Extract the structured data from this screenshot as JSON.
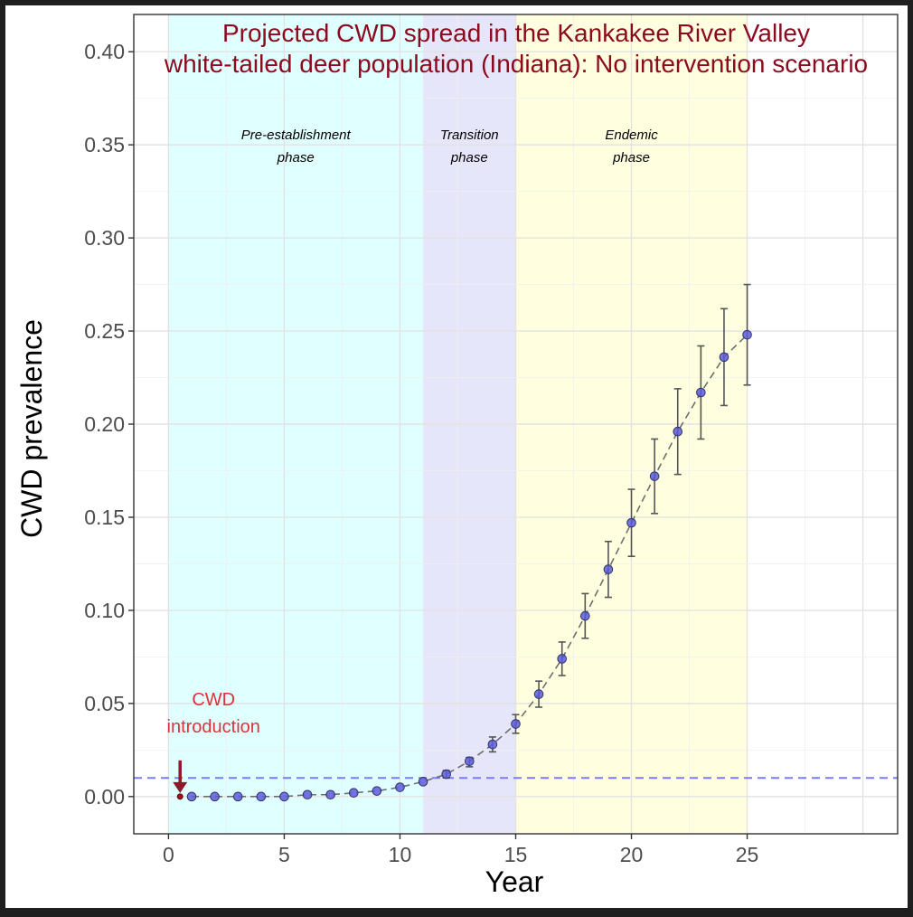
{
  "chart_data": {
    "type": "scatter",
    "title": [
      "Projected CWD spread in the Kankakee River Valley",
      "white-tailed deer population (Indiana): No intervention scenario"
    ],
    "xlabel": "Year",
    "ylabel": "CWD prevalence",
    "xlim": [
      -1.5,
      31.5
    ],
    "ylim": [
      -0.02,
      0.42
    ],
    "xticks": [
      0,
      5,
      10,
      15,
      20,
      25
    ],
    "yticks": [
      0.0,
      0.05,
      0.1,
      0.15,
      0.2,
      0.25,
      0.3,
      0.35,
      0.4
    ],
    "xtick_labels": [
      "0",
      "5",
      "10",
      "15",
      "20",
      "25"
    ],
    "ytick_labels": [
      "0.00",
      "0.05",
      "0.10",
      "0.15",
      "0.20",
      "0.25",
      "0.30",
      "0.35",
      "0.40"
    ],
    "grid": true,
    "legend": "none",
    "phases": [
      {
        "label": [
          "Pre-establishment",
          "phase"
        ],
        "start": 0,
        "end": 11,
        "color": "#e0ffff"
      },
      {
        "label": [
          "Transition",
          "phase"
        ],
        "start": 11,
        "end": 15,
        "color": "#e6e6fa"
      },
      {
        "label": [
          "Endemic",
          "phase"
        ],
        "start": 15,
        "end": 25,
        "color": "#ffffe0"
      }
    ],
    "threshold": {
      "y": 0.01,
      "color": "#7b7bff",
      "style": "dashed"
    },
    "series": [
      {
        "x": [
          1,
          2,
          3,
          4,
          5,
          6,
          7,
          8,
          9,
          10,
          11,
          12,
          13,
          14,
          15,
          16,
          17,
          18,
          19,
          20,
          21,
          22,
          23,
          24,
          25
        ],
        "y": [
          0.0,
          0.0,
          0.0,
          0.0,
          0.0,
          0.001,
          0.001,
          0.002,
          0.003,
          0.005,
          0.008,
          0.012,
          0.019,
          0.028,
          0.039,
          0.055,
          0.074,
          0.097,
          0.122,
          0.147,
          0.172,
          0.196,
          0.217,
          0.236,
          0.248
        ],
        "lower": [
          0.0,
          0.0,
          0.0,
          0.0,
          0.0,
          0.0,
          0.0,
          0.001,
          0.002,
          0.004,
          0.007,
          0.01,
          0.016,
          0.024,
          0.034,
          0.048,
          0.065,
          0.085,
          0.107,
          0.129,
          0.152,
          0.173,
          0.192,
          0.21,
          0.221
        ],
        "upper": [
          0.0,
          0.0,
          0.0,
          0.0,
          0.0,
          0.001,
          0.001,
          0.002,
          0.004,
          0.006,
          0.009,
          0.014,
          0.021,
          0.032,
          0.044,
          0.062,
          0.083,
          0.109,
          0.137,
          0.165,
          0.192,
          0.219,
          0.242,
          0.262,
          0.275
        ],
        "color": "#5c5cdc",
        "line_style": "dashed"
      }
    ],
    "introduction": {
      "x": 0.5,
      "y": 0.0,
      "label": [
        "CWD",
        "introduction"
      ],
      "color": "#8b1a2a"
    }
  }
}
